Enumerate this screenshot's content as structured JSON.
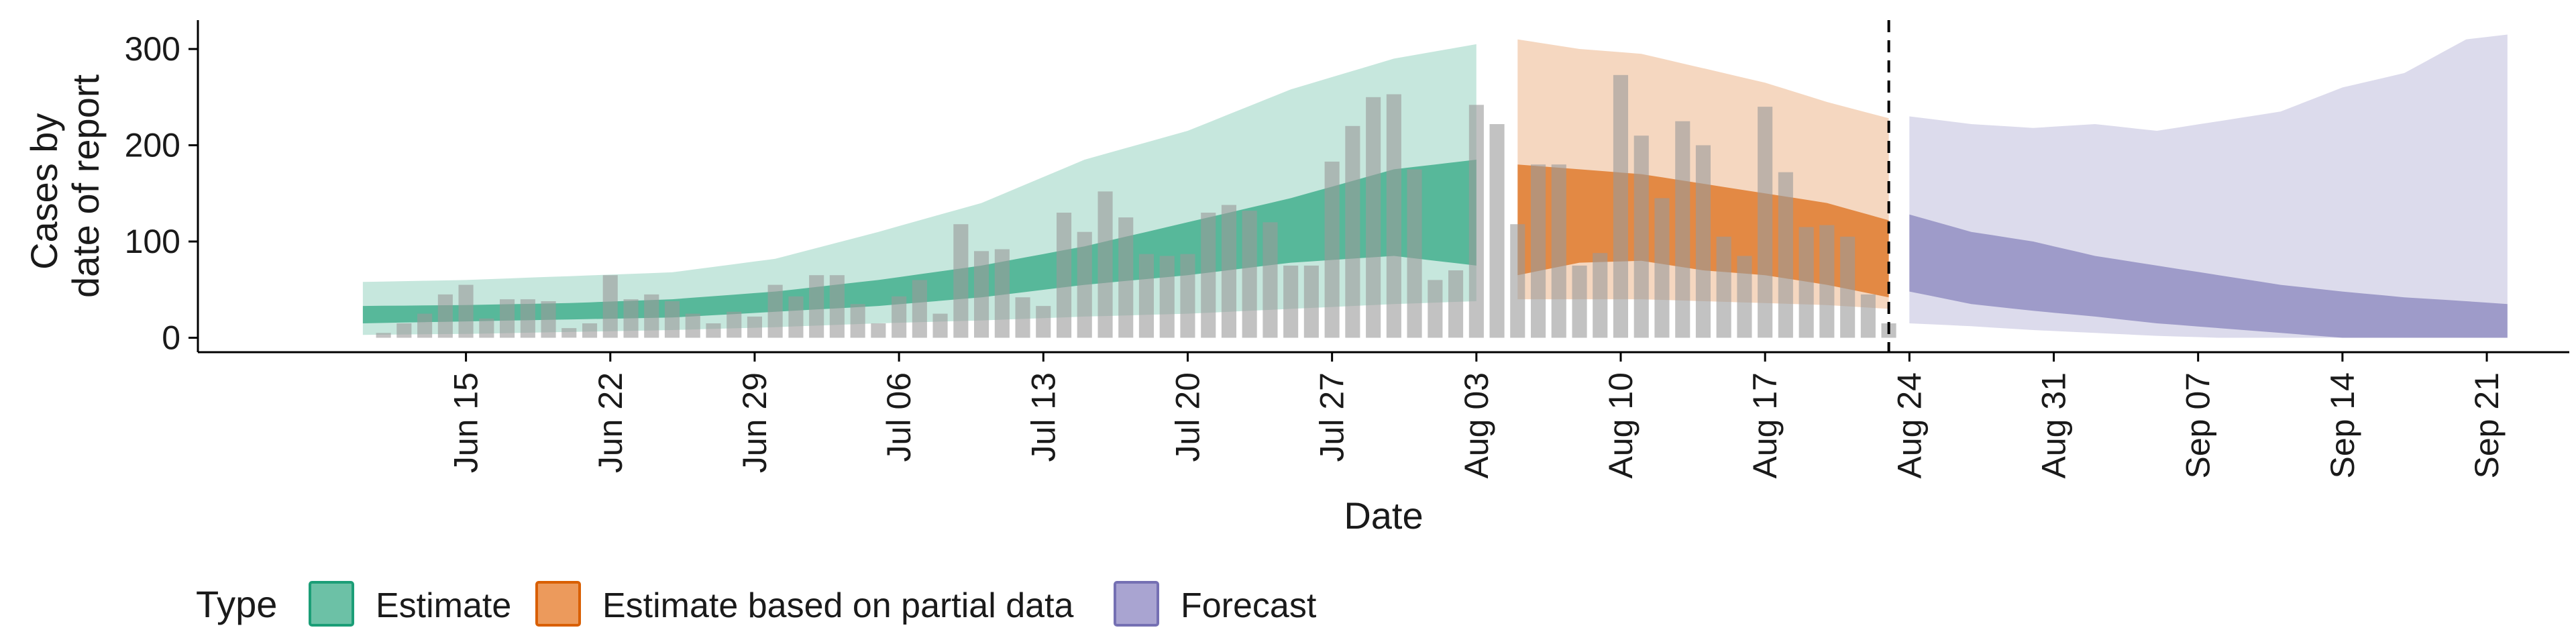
{
  "chart_data": {
    "type": "area",
    "xlabel": "Date",
    "ylabel_lines": [
      "Cases by",
      "date of report"
    ],
    "ylim": [
      -15,
      330
    ],
    "yticks": [
      0,
      100,
      200,
      300
    ],
    "x_start_date": "2020-06-11",
    "xlim_days": [
      -9,
      106
    ],
    "xticks": [
      {
        "day": 4,
        "label": "Jun 15"
      },
      {
        "day": 11,
        "label": "Jun 22"
      },
      {
        "day": 18,
        "label": "Jun 29"
      },
      {
        "day": 25,
        "label": "Jul 06"
      },
      {
        "day": 32,
        "label": "Jul 13"
      },
      {
        "day": 39,
        "label": "Jul 20"
      },
      {
        "day": 46,
        "label": "Jul 27"
      },
      {
        "day": 53,
        "label": "Aug 03"
      },
      {
        "day": 60,
        "label": "Aug 10"
      },
      {
        "day": 67,
        "label": "Aug 17"
      },
      {
        "day": 74,
        "label": "Aug 24"
      },
      {
        "day": 81,
        "label": "Aug 31"
      },
      {
        "day": 88,
        "label": "Sep 07"
      },
      {
        "day": 95,
        "label": "Sep 14"
      },
      {
        "day": 102,
        "label": "Sep 21"
      }
    ],
    "forecast_line_day": 73,
    "legend": {
      "title": "Type",
      "position": "bottom",
      "entries": [
        {
          "label": "Estimate",
          "fill": "#6cc1a6",
          "stroke": "#1b9e77"
        },
        {
          "label": "Estimate based on partial data",
          "fill": "#ec9a5c",
          "stroke": "#d95f02"
        },
        {
          "label": "Forecast",
          "fill": "#a9a4d1",
          "stroke": "#7570b3"
        }
      ]
    },
    "reported_cases": [
      {
        "x": 0,
        "y": 5
      },
      {
        "x": 1,
        "y": 15
      },
      {
        "x": 2,
        "y": 25
      },
      {
        "x": 3,
        "y": 45
      },
      {
        "x": 4,
        "y": 55
      },
      {
        "x": 5,
        "y": 20
      },
      {
        "x": 6,
        "y": 40
      },
      {
        "x": 7,
        "y": 40
      },
      {
        "x": 8,
        "y": 38
      },
      {
        "x": 9,
        "y": 10
      },
      {
        "x": 10,
        "y": 15
      },
      {
        "x": 11,
        "y": 65
      },
      {
        "x": 12,
        "y": 40
      },
      {
        "x": 13,
        "y": 45
      },
      {
        "x": 14,
        "y": 38
      },
      {
        "x": 15,
        "y": 25
      },
      {
        "x": 16,
        "y": 15
      },
      {
        "x": 17,
        "y": 27
      },
      {
        "x": 18,
        "y": 22
      },
      {
        "x": 19,
        "y": 55
      },
      {
        "x": 20,
        "y": 43
      },
      {
        "x": 21,
        "y": 65
      },
      {
        "x": 22,
        "y": 65
      },
      {
        "x": 23,
        "y": 35
      },
      {
        "x": 24,
        "y": 15
      },
      {
        "x": 25,
        "y": 43
      },
      {
        "x": 26,
        "y": 60
      },
      {
        "x": 27,
        "y": 25
      },
      {
        "x": 28,
        "y": 118
      },
      {
        "x": 29,
        "y": 90
      },
      {
        "x": 30,
        "y": 92
      },
      {
        "x": 31,
        "y": 42
      },
      {
        "x": 32,
        "y": 33
      },
      {
        "x": 33,
        "y": 130
      },
      {
        "x": 34,
        "y": 110
      },
      {
        "x": 35,
        "y": 152
      },
      {
        "x": 36,
        "y": 125
      },
      {
        "x": 37,
        "y": 87
      },
      {
        "x": 38,
        "y": 85
      },
      {
        "x": 39,
        "y": 87
      },
      {
        "x": 40,
        "y": 130
      },
      {
        "x": 41,
        "y": 138
      },
      {
        "x": 42,
        "y": 132
      },
      {
        "x": 43,
        "y": 120
      },
      {
        "x": 44,
        "y": 75
      },
      {
        "x": 45,
        "y": 75
      },
      {
        "x": 46,
        "y": 183
      },
      {
        "x": 47,
        "y": 220
      },
      {
        "x": 48,
        "y": 250
      },
      {
        "x": 49,
        "y": 253
      },
      {
        "x": 50,
        "y": 175
      },
      {
        "x": 51,
        "y": 60
      },
      {
        "x": 52,
        "y": 70
      },
      {
        "x": 53,
        "y": 242
      },
      {
        "x": 54,
        "y": 222
      },
      {
        "x": 55,
        "y": 118
      },
      {
        "x": 56,
        "y": 180
      },
      {
        "x": 57,
        "y": 180
      },
      {
        "x": 58,
        "y": 75
      },
      {
        "x": 59,
        "y": 88
      },
      {
        "x": 60,
        "y": 273
      },
      {
        "x": 61,
        "y": 210
      },
      {
        "x": 62,
        "y": 145
      },
      {
        "x": 63,
        "y": 225
      },
      {
        "x": 64,
        "y": 200
      },
      {
        "x": 65,
        "y": 105
      },
      {
        "x": 66,
        "y": 85
      },
      {
        "x": 67,
        "y": 240
      },
      {
        "x": 68,
        "y": 172
      },
      {
        "x": 69,
        "y": 115
      },
      {
        "x": 70,
        "y": 117
      },
      {
        "x": 71,
        "y": 105
      },
      {
        "x": 72,
        "y": 45
      },
      {
        "x": 73,
        "y": 15
      }
    ],
    "estimate": {
      "x": [
        -1,
        4,
        9,
        14,
        19,
        24,
        29,
        34,
        39,
        44,
        49,
        53
      ],
      "ci90_lo": [
        3,
        4,
        6,
        8,
        11,
        15,
        18,
        22,
        25,
        30,
        35,
        38
      ],
      "ci90_hi": [
        58,
        60,
        64,
        68,
        82,
        110,
        140,
        185,
        215,
        258,
        290,
        305
      ],
      "ci50_lo": [
        15,
        17,
        19,
        21,
        27,
        33,
        42,
        55,
        65,
        78,
        85,
        75
      ],
      "ci50_hi": [
        33,
        34,
        36,
        40,
        48,
        60,
        75,
        95,
        120,
        145,
        175,
        185
      ]
    },
    "estimate_partial": {
      "x": [
        55,
        58,
        61,
        64,
        67,
        70,
        73
      ],
      "ci90_lo": [
        40,
        40,
        40,
        38,
        36,
        34,
        30
      ],
      "ci90_hi": [
        310,
        300,
        295,
        280,
        265,
        245,
        228
      ],
      "ci50_lo": [
        65,
        78,
        80,
        70,
        65,
        55,
        42
      ],
      "ci50_hi": [
        180,
        175,
        170,
        160,
        150,
        140,
        122
      ]
    },
    "forecast": {
      "x": [
        74,
        77,
        80,
        83,
        86,
        89,
        92,
        95,
        98,
        101,
        103
      ],
      "ci90_lo": [
        15,
        12,
        8,
        5,
        2,
        0,
        0,
        0,
        0,
        0,
        0
      ],
      "ci90_hi": [
        230,
        222,
        218,
        222,
        215,
        225,
        235,
        260,
        275,
        310,
        315
      ],
      "ci50_lo": [
        48,
        35,
        28,
        22,
        15,
        10,
        5,
        0,
        0,
        0,
        0
      ],
      "ci50_hi": [
        128,
        110,
        100,
        85,
        75,
        65,
        55,
        48,
        42,
        38,
        35
      ]
    }
  }
}
